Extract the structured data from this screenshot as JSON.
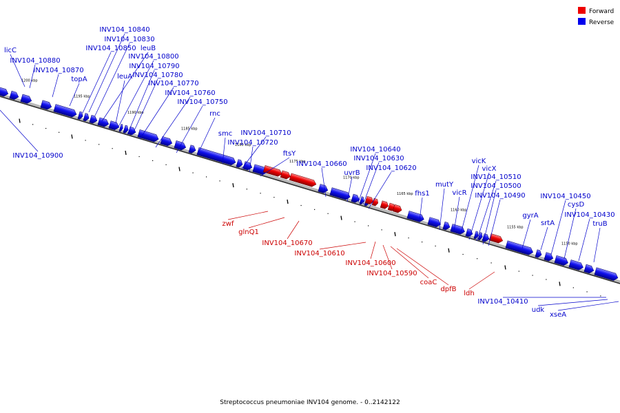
{
  "caption": "Streptococcus pneumoniae INV104 genome. - 0..2142122",
  "legend": {
    "forward": {
      "label": "Forward",
      "color": "#ee0000"
    },
    "reverse": {
      "label": "Reverse",
      "color": "#0000ee"
    }
  },
  "ticks": [
    "1200 kbp",
    "1195 kbp",
    "1190 kbp",
    "1185 kbp",
    "1180 kbp",
    "1175 kbp",
    "1170 kbp",
    "1165 kbp",
    "1160 kbp",
    "1155 kbp",
    "1150 kbp"
  ],
  "reverse_genes": [
    "licC",
    "INV104_10880",
    "INV104_10870",
    "topA",
    "INV104_10850",
    "INV104_10840",
    "INV104_10830",
    "leuB",
    "INV104_10800",
    "INV104_10790",
    "leuA",
    "INV104_10780",
    "INV104_10770",
    "INV104_10760",
    "INV104_10750",
    "rnc",
    "smc",
    "INV104_10710",
    "INV104_10720",
    "ftsY",
    "INV104_10660",
    "INV104_10640",
    "INV104_10630",
    "uvrB",
    "INV104_10620",
    "fhs1",
    "mutY",
    "vicR",
    "vicK",
    "vicX",
    "INV104_10510",
    "INV104_10500",
    "INV104_10490",
    "gyrA",
    "srtA",
    "INV104_10450",
    "cysD",
    "INV104_10430",
    "truB",
    "INV104_10900",
    "INV104_10410",
    "udk",
    "xseA"
  ],
  "forward_genes": [
    "zwf",
    "glnQ1",
    "INV104_10670",
    "INV104_10610",
    "INV104_10600",
    "INV104_10590",
    "coaC",
    "dpfB",
    "ldh"
  ]
}
